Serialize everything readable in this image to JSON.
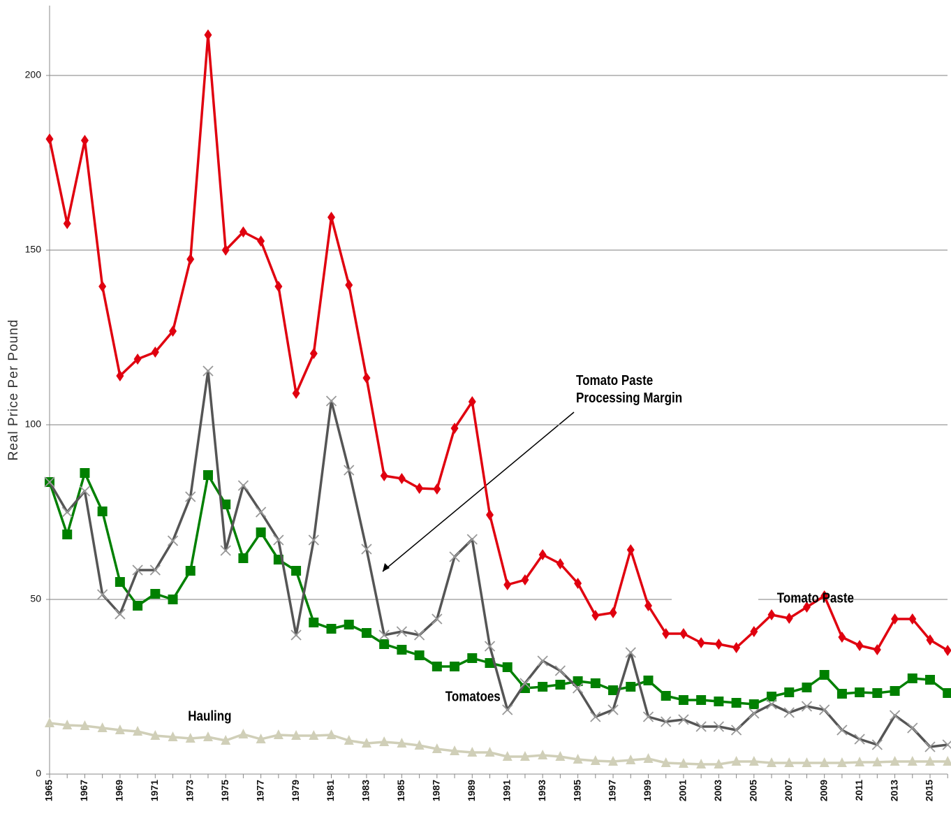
{
  "chart_data": {
    "type": "line",
    "y_label": "Real Price Per Pound",
    "categories": [
      1965,
      null,
      1967,
      null,
      1969,
      null,
      1971,
      null,
      1973,
      null,
      1975,
      null,
      1977,
      null,
      1979,
      null,
      1981,
      null,
      1983,
      null,
      1985,
      null,
      1987,
      null,
      1989,
      null,
      1991,
      null,
      1993,
      null,
      1995,
      null,
      1997,
      null,
      1999,
      null,
      2001,
      null,
      2003,
      null,
      2005,
      null,
      2007,
      null,
      2009,
      null,
      2011,
      null,
      2013,
      null,
      2015,
      null
    ],
    "ylim": [
      0,
      220
    ],
    "yticks": [
      0,
      50,
      100,
      150,
      200
    ],
    "grid": true,
    "series": [
      {
        "name": "Tomato Paste",
        "color": "#e0000f",
        "marker": "diamond",
        "values": [
          181.8,
          157.6,
          181.4,
          139.6,
          114,
          118.8,
          120.8,
          126.8,
          147.4,
          211.6,
          150,
          155.2,
          152.6,
          139.6,
          109,
          120.4,
          159.4,
          140,
          113.4,
          85.4,
          84.6,
          81.8,
          81.6,
          99,
          106.6,
          74.2,
          54.2,
          55.6,
          62.8,
          60.2,
          54.6,
          45.4,
          46.2,
          64.2,
          48.2,
          40.2,
          40.2,
          37.6,
          37.2,
          36.2,
          40.8,
          45.6,
          44.6,
          47.8,
          51,
          39.2,
          36.8,
          35.6,
          44.4,
          44.4,
          38.4,
          35.4
        ]
      },
      {
        "name": "Tomato Paste Processing Margin",
        "color": "#555555",
        "marker": "x",
        "values": [
          83.6,
          75,
          81,
          51.4,
          45.8,
          58.4,
          58.4,
          66.8,
          79.4,
          115.4,
          64,
          82.6,
          75,
          67,
          39.8,
          67,
          106.8,
          87,
          64.4,
          39.8,
          40.8,
          39.8,
          44.4,
          62.2,
          67.2,
          36.6,
          18.4,
          26,
          32.4,
          29.6,
          24.6,
          16.4,
          18.4,
          34.8,
          16.4,
          15,
          15.6,
          13.6,
          13.6,
          12.6,
          17.4,
          20,
          17.6,
          19.4,
          18.4,
          12.6,
          10,
          8.4,
          16.8,
          13.2,
          7.8,
          8.4
        ]
      },
      {
        "name": "Tomatoes",
        "color": "#008000",
        "marker": "square",
        "values": [
          83.6,
          68.6,
          86.2,
          75.2,
          55,
          48.2,
          51.6,
          50,
          58.2,
          85.6,
          77.2,
          61.8,
          69.2,
          61.4,
          58.2,
          43.4,
          41.6,
          42.8,
          40.4,
          37.2,
          35.6,
          34,
          30.8,
          30.8,
          33.2,
          31.8,
          30.6,
          24.6,
          25,
          25.6,
          26.6,
          26,
          24,
          25,
          26.8,
          22.4,
          21.2,
          21.2,
          20.8,
          20.4,
          20,
          22.2,
          23.4,
          24.8,
          28.4,
          23,
          23.4,
          23.2,
          23.8,
          27.4,
          27,
          23.2
        ]
      },
      {
        "name": "Hauling",
        "color": "#d0cfb8",
        "marker": "triangle",
        "values": [
          14.6,
          14,
          13.8,
          13.2,
          12.6,
          12.2,
          11,
          10.6,
          10.2,
          10.6,
          9.6,
          11.4,
          10,
          11.2,
          11,
          11,
          11.2,
          9.6,
          8.8,
          9.2,
          8.8,
          8.2,
          7.2,
          6.6,
          6.2,
          6.2,
          5,
          5,
          5.4,
          5,
          4.2,
          3.8,
          3.6,
          4,
          4.4,
          3.2,
          3,
          2.8,
          2.8,
          3.6,
          3.6,
          3.2,
          3.2,
          3.2,
          3.2,
          3.2,
          3.4,
          3.4,
          3.6,
          3.6,
          3.6,
          3.6
        ]
      }
    ]
  }
}
